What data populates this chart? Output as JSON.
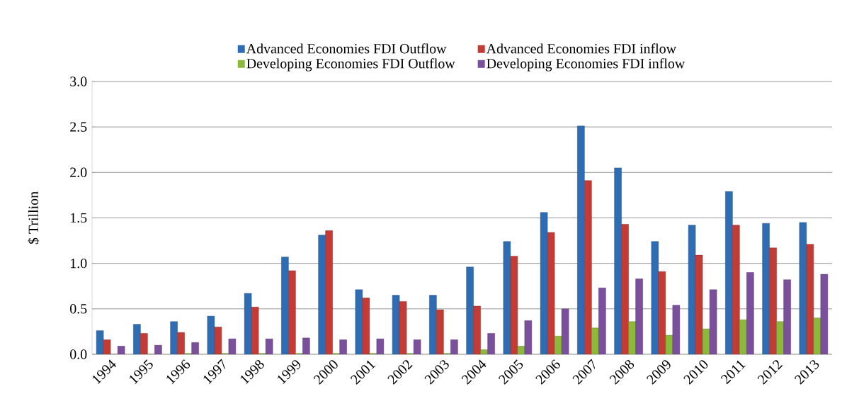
{
  "chart_data": {
    "type": "bar",
    "ylabel": "$ Trillion",
    "categories": [
      "1994",
      "1995",
      "1996",
      "1997",
      "1998",
      "1999",
      "2000",
      "2001",
      "2002",
      "2003",
      "2004",
      "2005",
      "2006",
      "2007",
      "2008",
      "2009",
      "2010",
      "2011",
      "2012",
      "2013"
    ],
    "series": [
      {
        "name": "Advanced Economies FDI Outflow",
        "color": "#2e6db4",
        "values": [
          0.26,
          0.33,
          0.36,
          0.42,
          0.67,
          1.07,
          1.31,
          0.71,
          0.65,
          0.65,
          0.96,
          1.24,
          1.56,
          2.51,
          2.05,
          1.24,
          1.42,
          1.79,
          1.44,
          1.45
        ]
      },
      {
        "name": "Advanced Economies FDI inflow",
        "color": "#c43a34",
        "values": [
          0.16,
          0.23,
          0.24,
          0.3,
          0.52,
          0.92,
          1.36,
          0.62,
          0.58,
          0.49,
          0.53,
          1.08,
          1.34,
          1.91,
          1.43,
          0.91,
          1.09,
          1.42,
          1.17,
          1.21
        ]
      },
      {
        "name": "Developing Economies FDI Outflow",
        "color": "#8db93a",
        "values": [
          0.0,
          0.0,
          0.01,
          0.01,
          0.01,
          0.01,
          0.01,
          0.01,
          0.01,
          0.01,
          0.05,
          0.09,
          0.2,
          0.29,
          0.36,
          0.21,
          0.28,
          0.38,
          0.36,
          0.4
        ]
      },
      {
        "name": "Developing Economies FDI inflow",
        "color": "#7a4f9c",
        "values": [
          0.09,
          0.1,
          0.13,
          0.17,
          0.17,
          0.18,
          0.16,
          0.17,
          0.16,
          0.16,
          0.23,
          0.37,
          0.5,
          0.73,
          0.83,
          0.54,
          0.71,
          0.9,
          0.82,
          0.88
        ]
      }
    ],
    "ylim": [
      0,
      3.0
    ],
    "yticks": [
      {
        "value": 0,
        "label": "0.0"
      },
      {
        "value": 0.5,
        "label": "0.5"
      },
      {
        "value": 1.0,
        "label": "1.0"
      },
      {
        "value": 1.5,
        "label": "1.5"
      },
      {
        "value": 2.0,
        "label": "2.0"
      },
      {
        "value": 2.5,
        "label": "2.5"
      },
      {
        "value": 3.0,
        "label": "3.0"
      }
    ],
    "grid": "y",
    "legend": "top"
  }
}
